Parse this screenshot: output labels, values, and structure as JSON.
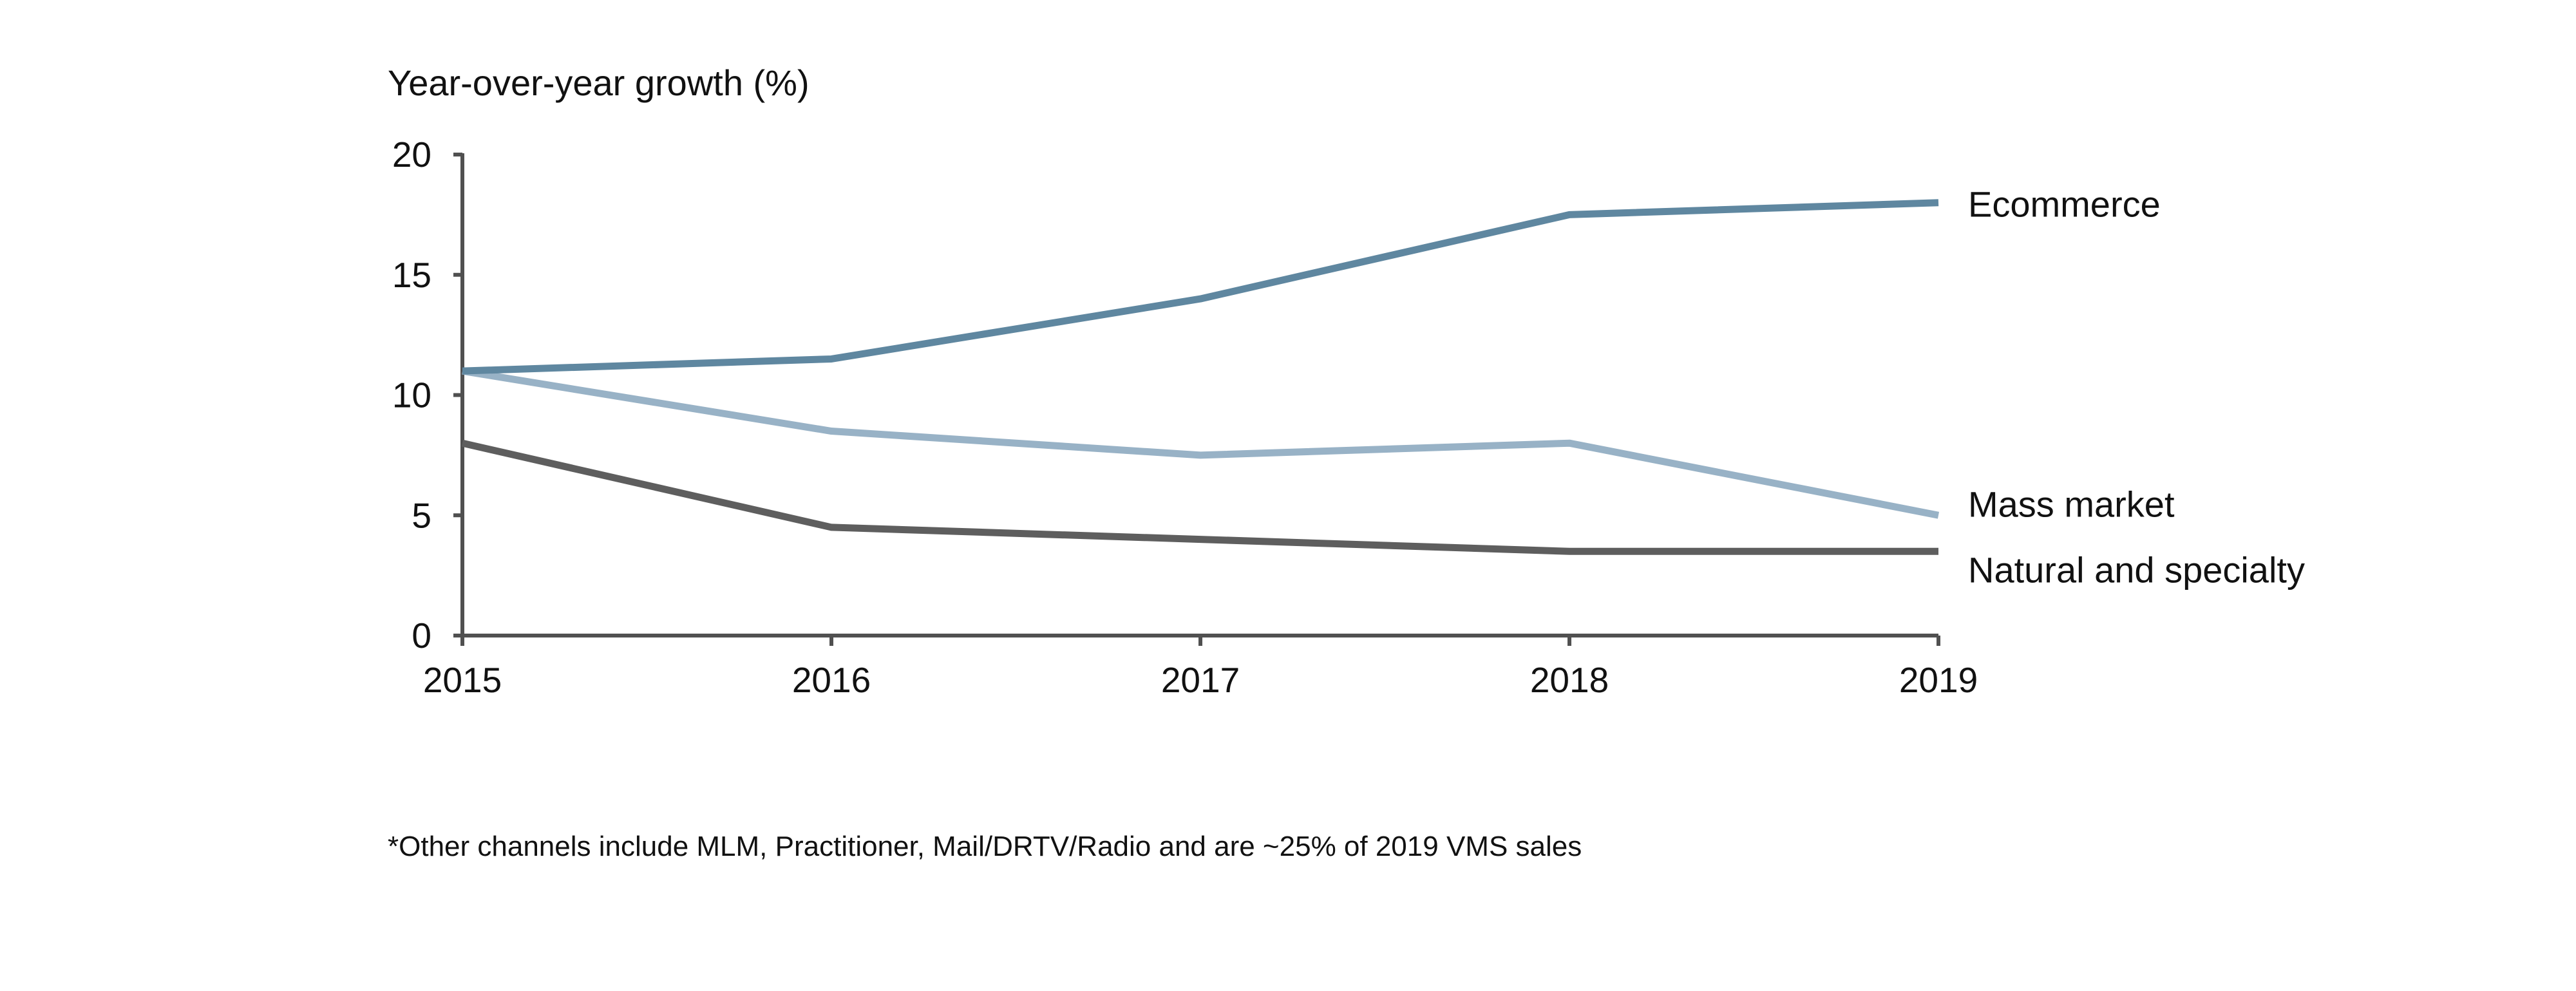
{
  "chart_data": {
    "type": "line",
    "title": "",
    "ylabel": "Year-over-year growth (%)",
    "xlabel": "",
    "x": [
      2015,
      2016,
      2017,
      2018,
      2019
    ],
    "x_tick_labels": [
      "2015",
      "2016",
      "2017",
      "2018",
      "2019"
    ],
    "y_ticks": [
      0,
      5,
      10,
      15,
      20
    ],
    "y_tick_labels": [
      "0",
      "5",
      "10",
      "15",
      "20"
    ],
    "ylim": [
      0,
      20
    ],
    "grid": false,
    "legend": "inline labels at right end of each line",
    "series": [
      {
        "name": "Ecommerce",
        "color": "#5f87a0",
        "values": [
          11,
          11.5,
          14,
          17.5,
          18
        ]
      },
      {
        "name": "Mass market",
        "color": "#98b2c6",
        "values": [
          11,
          8.5,
          7.5,
          8,
          5
        ]
      },
      {
        "name": "Natural and specialty",
        "color": "#5e5e5e",
        "values": [
          8,
          4.5,
          4,
          3.5,
          3.5
        ]
      }
    ]
  },
  "footnote": "*Other channels include MLM, Practitioner, Mail/DRTV/Radio and are ~25% of 2019 VMS sales",
  "axis_color": "#505050"
}
